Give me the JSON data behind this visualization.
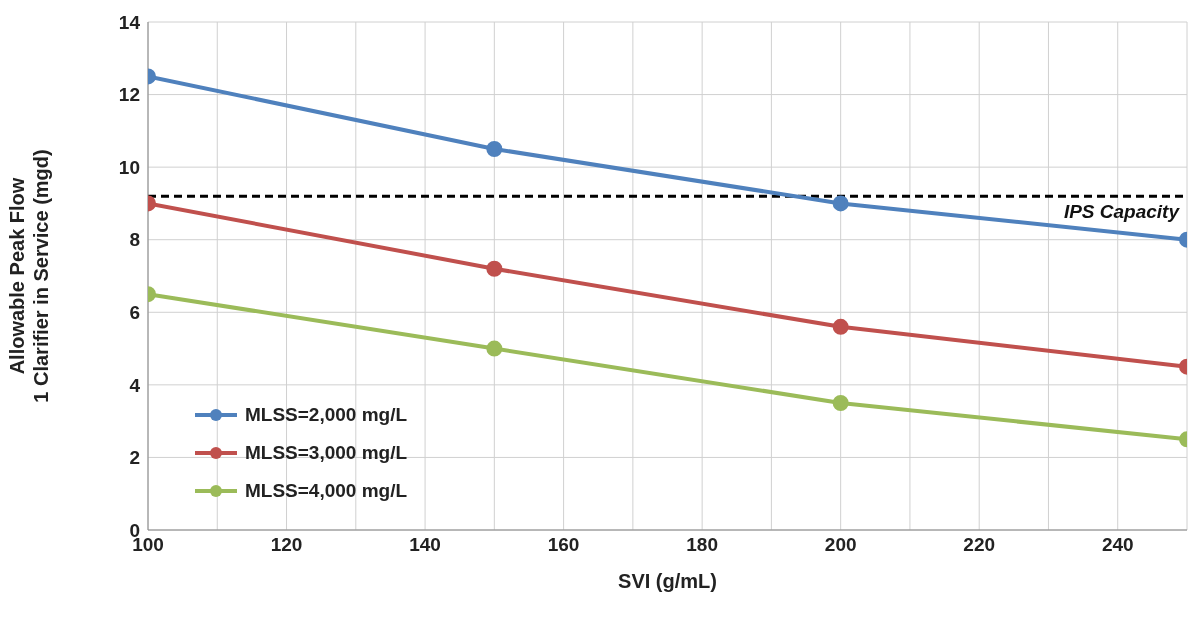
{
  "chart_data": {
    "type": "line",
    "xlabel": "SVI (g/mL)",
    "ylabel": "Allowable Peak Flow\n1 Clarifier in Service (mgd)",
    "x": [
      100,
      150,
      200,
      250
    ],
    "series": [
      {
        "name": "MLSS=2,000 mg/L",
        "color": "#4f81bd",
        "values": [
          12.5,
          10.5,
          9.0,
          8.0
        ]
      },
      {
        "name": "MLSS=3,000 mg/L",
        "color": "#c0504d",
        "values": [
          9.0,
          7.2,
          5.6,
          4.5
        ]
      },
      {
        "name": "MLSS=4,000 mg/L",
        "color": "#9bbb59",
        "values": [
          6.5,
          5.0,
          3.5,
          2.5
        ]
      }
    ],
    "xlim": [
      100,
      250
    ],
    "xticks": [
      100,
      {
        "value": 110,
        "label": null
      },
      120,
      {
        "value": 130,
        "label": null
      },
      140,
      {
        "value": 150,
        "label": null
      },
      160,
      {
        "value": 170,
        "label": null
      },
      180,
      {
        "value": 190,
        "label": null
      },
      200,
      {
        "value": 210,
        "label": null
      },
      220,
      {
        "value": 230,
        "label": null
      },
      240,
      {
        "value": 250,
        "label": null
      }
    ],
    "ylim": [
      0,
      14
    ],
    "yticks": [
      0,
      2,
      4,
      6,
      8,
      10,
      12,
      14
    ],
    "ref_lines": [
      {
        "axis": "y",
        "value": 9.2,
        "label": "IPS Capacity",
        "color": "#000000",
        "line_style": "dashed"
      }
    ],
    "grid": true,
    "legend": "bottom left",
    "marker": "circle",
    "line_style": "solid"
  }
}
